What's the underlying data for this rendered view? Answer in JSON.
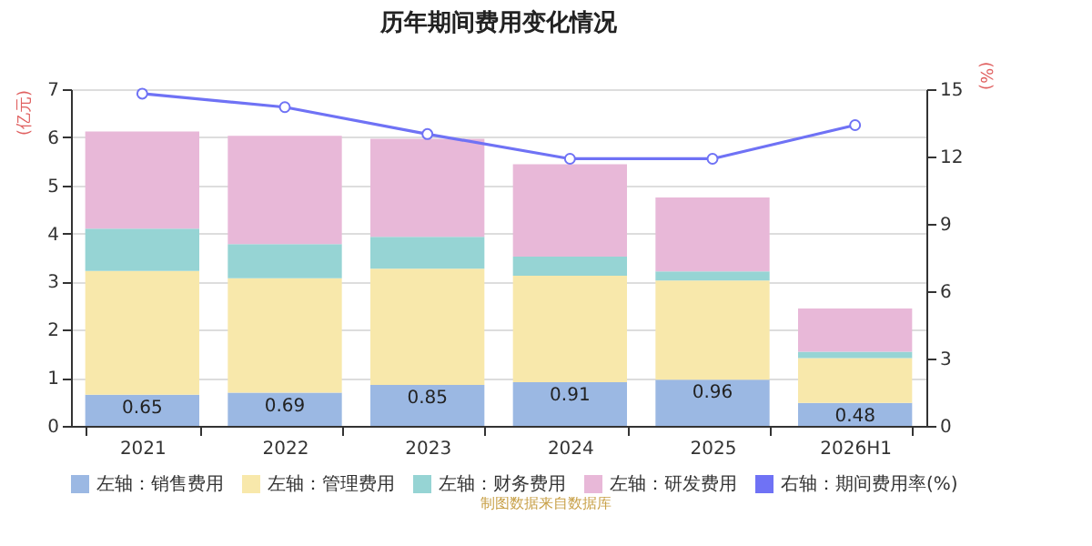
{
  "chart_data": {
    "type": "bar",
    "title": "历年期间费用变化情况",
    "categories": [
      "2021",
      "2022",
      "2023",
      "2024",
      "2025",
      "2026H1"
    ],
    "stacked": true,
    "ylabel": "(亿元)",
    "y2label": "(%)",
    "ylim": [
      0,
      7
    ],
    "yticks": [
      0,
      1,
      2,
      3,
      4,
      5,
      6,
      7
    ],
    "y2lim": [
      0,
      15
    ],
    "y2ticks": [
      0,
      3,
      6,
      9,
      12,
      15
    ],
    "grid": "y",
    "legend": "bottom",
    "marker": "circle",
    "series": [
      {
        "name": "左轴：销售费用",
        "type": "bar",
        "color": "#9bb8e3",
        "values": [
          0.65,
          0.69,
          0.85,
          0.91,
          0.96,
          0.48
        ],
        "value_labels": [
          "0.65",
          "0.69",
          "0.85",
          "0.91",
          "0.96",
          "0.48"
        ]
      },
      {
        "name": "左轴：管理费用",
        "type": "bar",
        "color": "#f8e8ab",
        "values": [
          2.57,
          2.38,
          2.42,
          2.21,
          2.06,
          0.93
        ]
      },
      {
        "name": "左轴：财务费用",
        "type": "bar",
        "color": "#96d4d4",
        "values": [
          0.88,
          0.71,
          0.66,
          0.4,
          0.19,
          0.13
        ]
      },
      {
        "name": "左轴：研发费用",
        "type": "bar",
        "color": "#e8b8d8",
        "values": [
          2.02,
          2.25,
          2.04,
          1.92,
          1.54,
          0.9
        ]
      },
      {
        "name": "右轴：期间费用率(%)",
        "type": "line",
        "axis": "y2",
        "color": "#6f72f5",
        "values": [
          14.8,
          14.2,
          13.0,
          11.9,
          11.9,
          13.4
        ]
      }
    ],
    "annotations": [
      "制图数据来自数据库"
    ]
  }
}
